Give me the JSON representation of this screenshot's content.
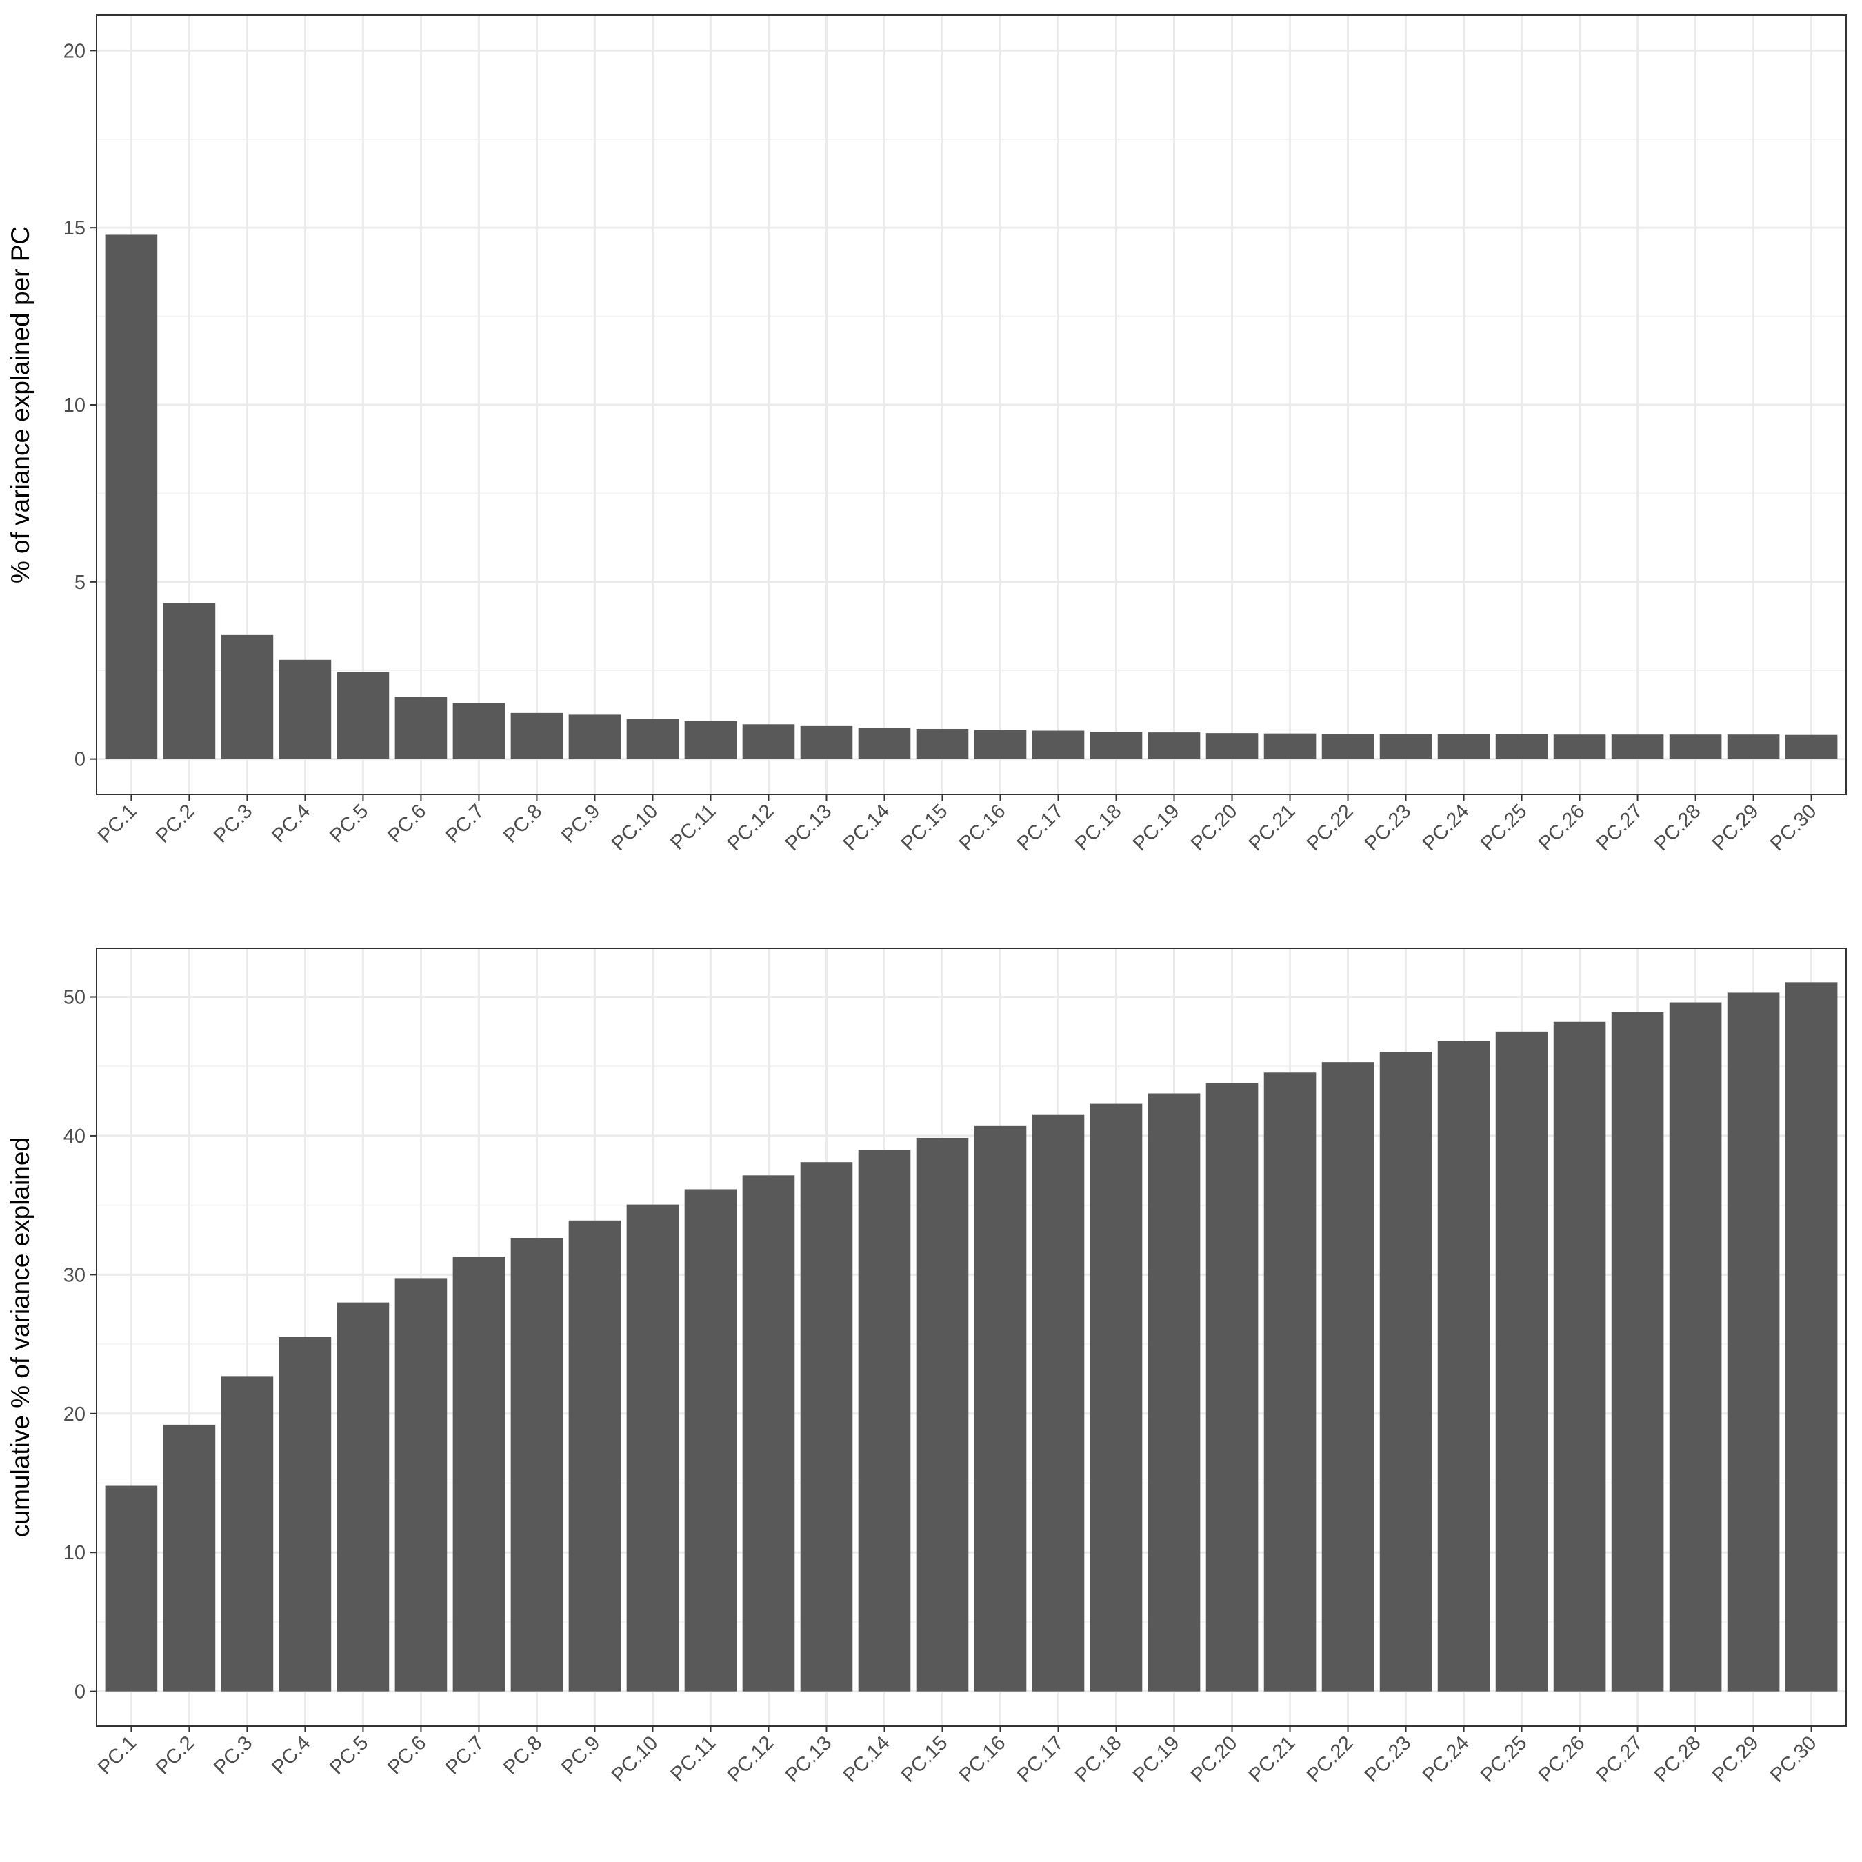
{
  "chart_data": [
    {
      "type": "bar",
      "title": "",
      "xlabel": "",
      "ylabel": "% of variance explained per PC",
      "ylim": [
        -1,
        21
      ],
      "yticks": [
        0,
        5,
        10,
        15,
        20
      ],
      "grid": true,
      "bar_color": "#595959",
      "categories": [
        "PC.1",
        "PC.2",
        "PC.3",
        "PC.4",
        "PC.5",
        "PC.6",
        "PC.7",
        "PC.8",
        "PC.9",
        "PC.10",
        "PC.11",
        "PC.12",
        "PC.13",
        "PC.14",
        "PC.15",
        "PC.16",
        "PC.17",
        "PC.18",
        "PC.19",
        "PC.20",
        "PC.21",
        "PC.22",
        "PC.23",
        "PC.24",
        "PC.25",
        "PC.26",
        "PC.27",
        "PC.28",
        "PC.29",
        "PC.30"
      ],
      "values": [
        14.8,
        4.4,
        3.5,
        2.8,
        2.45,
        1.75,
        1.58,
        1.3,
        1.25,
        1.13,
        1.07,
        0.98,
        0.93,
        0.88,
        0.85,
        0.82,
        0.8,
        0.77,
        0.75,
        0.73,
        0.72,
        0.71,
        0.71,
        0.7,
        0.7,
        0.69,
        0.69,
        0.69,
        0.69,
        0.68
      ]
    },
    {
      "type": "bar",
      "title": "",
      "xlabel": "",
      "ylabel": "cumulative % of variance explained",
      "ylim": [
        -2.5,
        53.5
      ],
      "yticks": [
        0,
        10,
        20,
        30,
        40,
        50
      ],
      "grid": true,
      "bar_color": "#595959",
      "categories": [
        "PC.1",
        "PC.2",
        "PC.3",
        "PC.4",
        "PC.5",
        "PC.6",
        "PC.7",
        "PC.8",
        "PC.9",
        "PC.10",
        "PC.11",
        "PC.12",
        "PC.13",
        "PC.14",
        "PC.15",
        "PC.16",
        "PC.17",
        "PC.18",
        "PC.19",
        "PC.20",
        "PC.21",
        "PC.22",
        "PC.23",
        "PC.24",
        "PC.25",
        "PC.26",
        "PC.27",
        "PC.28",
        "PC.29",
        "PC.30"
      ],
      "values": [
        14.8,
        19.2,
        22.7,
        25.5,
        28.0,
        29.75,
        31.3,
        32.65,
        33.9,
        35.05,
        36.15,
        37.15,
        38.1,
        39.0,
        39.85,
        40.7,
        41.5,
        42.3,
        43.05,
        43.8,
        44.55,
        45.3,
        46.05,
        46.8,
        47.5,
        48.2,
        48.9,
        49.6,
        50.3,
        51.05
      ]
    }
  ]
}
